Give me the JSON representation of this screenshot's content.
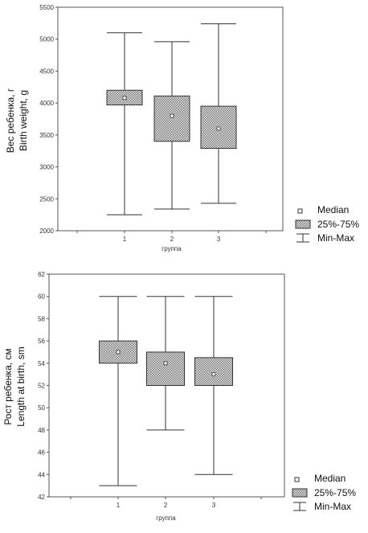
{
  "chart_data": [
    {
      "type": "box",
      "xlabel": "группа",
      "ylabel": [
        "Вес ребенка, г",
        "Birth weight, g"
      ],
      "ylim": [
        2000,
        5500
      ],
      "yticks": [
        2000,
        2500,
        3000,
        3500,
        4000,
        4500,
        5000,
        5500
      ],
      "categories": [
        "1",
        "2",
        "3"
      ],
      "boxes": [
        {
          "min": 2250,
          "q1": 3970,
          "median": 4080,
          "q3": 4200,
          "max": 5100
        },
        {
          "min": 2340,
          "q1": 3400,
          "median": 3800,
          "q3": 4110,
          "max": 4960
        },
        {
          "min": 2430,
          "q1": 3290,
          "median": 3600,
          "q3": 3950,
          "max": 5240
        }
      ],
      "legend": [
        "Median",
        "25%-75%",
        "Min-Max"
      ]
    },
    {
      "type": "box",
      "xlabel": "группа",
      "ylabel": [
        "Рост ребенка, см",
        "Length at birth, sm"
      ],
      "ylim": [
        42,
        62
      ],
      "yticks": [
        42,
        44,
        46,
        48,
        50,
        52,
        54,
        56,
        58,
        60,
        62
      ],
      "categories": [
        "1",
        "2",
        "3"
      ],
      "boxes": [
        {
          "min": 43,
          "q1": 54,
          "median": 55,
          "q3": 56,
          "max": 60
        },
        {
          "min": 48,
          "q1": 52,
          "median": 54,
          "q3": 55,
          "max": 60
        },
        {
          "min": 44,
          "q1": 52,
          "median": 53,
          "q3": 54.5,
          "max": 60
        }
      ],
      "legend": [
        "Median",
        "25%-75%",
        "Min-Max"
      ]
    }
  ]
}
